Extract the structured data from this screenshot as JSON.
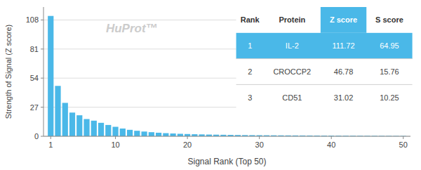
{
  "chart_data": {
    "type": "bar",
    "xlabel": "Signal Rank (Top 50)",
    "ylabel": "Strength of Signal (Z score)",
    "annotations": [
      "HuProt™"
    ],
    "x": [
      1,
      2,
      3,
      4,
      5,
      6,
      7,
      8,
      9,
      10,
      11,
      12,
      13,
      14,
      15,
      16,
      17,
      18,
      19,
      20,
      21,
      22,
      23,
      24,
      25,
      26,
      27,
      28,
      29,
      30,
      31,
      32,
      33,
      34,
      35,
      36,
      37,
      38,
      39,
      40,
      41,
      42,
      43,
      44,
      45,
      46,
      47,
      48,
      49,
      50
    ],
    "values": [
      111.72,
      46.78,
      31.02,
      22.0,
      19.5,
      16.0,
      14.5,
      12.5,
      10.5,
      8.8,
      7.2,
      6.0,
      5.1,
      4.4,
      3.8,
      3.3,
      2.9,
      2.6,
      2.3,
      2.1,
      1.9,
      1.75,
      1.6,
      1.5,
      1.4,
      1.3,
      1.2,
      1.1,
      1.05,
      1.0,
      0.95,
      0.9,
      0.85,
      0.82,
      0.78,
      0.75,
      0.72,
      0.69,
      0.66,
      0.63,
      0.6,
      0.57,
      0.54,
      0.51,
      0.48,
      0.45,
      0.42,
      0.39,
      0.36,
      0.33
    ],
    "color": "#4ab8e8",
    "xlim": [
      0.0,
      51
    ],
    "xticks": [
      1,
      10,
      20,
      30,
      40,
      50
    ],
    "ylim": [
      0,
      120
    ],
    "yticks": [
      0,
      27,
      54,
      81,
      108
    ],
    "grid": true,
    "table": {
      "columns": [
        "Rank",
        "Protein",
        "Z score",
        "S score"
      ],
      "rows": [
        [
          "1",
          "IL-2",
          "111.72",
          "64.95"
        ],
        [
          "2",
          "CROCCP2",
          "46.78",
          "15.76"
        ],
        [
          "3",
          "CD51",
          "31.02",
          "10.25"
        ]
      ]
    }
  }
}
